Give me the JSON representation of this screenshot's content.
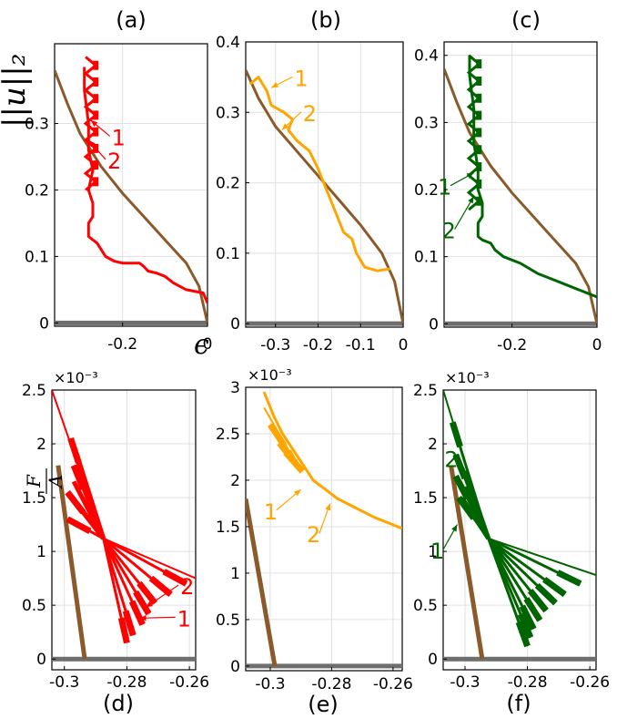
{
  "colors": {
    "a": "#ff0000",
    "b": "#ffa500",
    "c": "#006400",
    "brown": "#8b5a2b",
    "gray": "#6e6e6e",
    "grid": "#e0e0e0"
  },
  "labels": {
    "top_ylabel": "||u||₂",
    "top_xlabel": "ϵ",
    "bottom_ylabel_num": "F",
    "bottom_ylabel_den": "A",
    "exponent": "×10⁻³"
  },
  "chart_data": [
    {
      "id": "a",
      "label": "(a)",
      "type": "line",
      "xlim": [
        -0.36,
        0.0
      ],
      "ylim": [
        -0.005,
        0.42
      ],
      "xticks": [
        -0.2,
        0.0
      ],
      "xtick_labels": [
        "-0.2",
        "0"
      ],
      "yticks": [
        0,
        0.1,
        0.2,
        0.3
      ],
      "ytick_labels": [
        "0",
        "0.1",
        "0.2",
        "0.3"
      ],
      "grid": true,
      "color": "a",
      "brown": [
        [
          -0.36,
          0.38
        ],
        [
          -0.33,
          0.33
        ],
        [
          -0.3,
          0.285
        ],
        [
          -0.25,
          0.235
        ],
        [
          -0.2,
          0.195
        ],
        [
          -0.15,
          0.16
        ],
        [
          -0.1,
          0.125
        ],
        [
          -0.05,
          0.09
        ],
        [
          -0.02,
          0.055
        ],
        [
          0,
          0
        ]
      ],
      "gray": [
        [
          -0.36,
          0.0
        ],
        [
          0.0,
          0.0
        ]
      ],
      "colored": [
        [
          0,
          0.03
        ],
        [
          -0.01,
          0.045
        ],
        [
          -0.05,
          0.05
        ],
        [
          -0.08,
          0.06
        ],
        [
          -0.1,
          0.07
        ],
        [
          -0.12,
          0.075
        ],
        [
          -0.14,
          0.078
        ],
        [
          -0.15,
          0.085
        ],
        [
          -0.16,
          0.09
        ],
        [
          -0.18,
          0.09
        ],
        [
          -0.2,
          0.09
        ],
        [
          -0.22,
          0.093
        ],
        [
          -0.24,
          0.1
        ],
        [
          -0.25,
          0.11
        ],
        [
          -0.26,
          0.12
        ],
        [
          -0.27,
          0.125
        ],
        [
          -0.28,
          0.13
        ],
        [
          -0.28,
          0.15
        ],
        [
          -0.27,
          0.16
        ],
        [
          -0.27,
          0.18
        ],
        [
          -0.28,
          0.2
        ],
        [
          -0.27,
          0.23
        ],
        [
          -0.28,
          0.26
        ],
        [
          -0.28,
          0.3
        ],
        [
          -0.29,
          0.35
        ],
        [
          -0.29,
          0.385
        ]
      ],
      "zigzag": {
        "x": -0.275,
        "ymin": 0.2,
        "ymax": 0.4,
        "amp": 0.012,
        "steps": 8
      },
      "annotations": [
        {
          "text": "1",
          "tx": -0.23,
          "ty": 0.27,
          "px": -0.275,
          "py": 0.305
        },
        {
          "text": "2",
          "tx": -0.24,
          "ty": 0.235,
          "px": -0.28,
          "py": 0.275
        }
      ]
    },
    {
      "id": "b",
      "label": "(b)",
      "type": "line",
      "xlim": [
        -0.37,
        0.0
      ],
      "ylim": [
        -0.005,
        0.4
      ],
      "xticks": [
        -0.3,
        -0.2,
        -0.1,
        0.0
      ],
      "xtick_labels": [
        "-0.3",
        "-0.2",
        "-0.1",
        "0"
      ],
      "yticks": [
        0,
        0.1,
        0.2,
        0.3,
        0.4
      ],
      "ytick_labels": [
        "0",
        "0.1",
        "0.2",
        "0.3",
        "0.4"
      ],
      "grid": true,
      "color": "b",
      "brown": [
        [
          -0.37,
          0.36
        ],
        [
          -0.34,
          0.32
        ],
        [
          -0.3,
          0.28
        ],
        [
          -0.25,
          0.245
        ],
        [
          -0.2,
          0.21
        ],
        [
          -0.15,
          0.175
        ],
        [
          -0.1,
          0.14
        ],
        [
          -0.05,
          0.1
        ],
        [
          -0.02,
          0.06
        ],
        [
          0,
          0
        ]
      ],
      "gray": [
        [
          -0.37,
          0.0
        ],
        [
          0.0,
          0.0
        ]
      ],
      "colored": [
        [
          -0.03,
          0.078
        ],
        [
          -0.06,
          0.075
        ],
        [
          -0.09,
          0.08
        ],
        [
          -0.11,
          0.1
        ],
        [
          -0.12,
          0.12
        ],
        [
          -0.14,
          0.13
        ],
        [
          -0.16,
          0.16
        ],
        [
          -0.18,
          0.19
        ],
        [
          -0.2,
          0.22
        ],
        [
          -0.22,
          0.245
        ],
        [
          -0.25,
          0.26
        ],
        [
          -0.27,
          0.275
        ],
        [
          -0.26,
          0.29
        ],
        [
          -0.28,
          0.3
        ],
        [
          -0.31,
          0.31
        ],
        [
          -0.32,
          0.33
        ],
        [
          -0.34,
          0.35
        ],
        [
          -0.36,
          0.34
        ]
      ],
      "annotations": [
        {
          "text": "1",
          "tx": -0.26,
          "ty": 0.34,
          "px": -0.31,
          "py": 0.335
        },
        {
          "text": "2",
          "tx": -0.24,
          "ty": 0.29,
          "px": -0.285,
          "py": 0.275
        }
      ]
    },
    {
      "id": "c",
      "label": "(c)",
      "type": "line",
      "xlim": [
        -0.36,
        0.0
      ],
      "ylim": [
        -0.005,
        0.42
      ],
      "xticks": [
        -0.2,
        0.0
      ],
      "xtick_labels": [
        "-0.2",
        "0"
      ],
      "yticks": [
        0,
        0.1,
        0.2,
        0.3,
        0.4
      ],
      "ytick_labels": [
        "0",
        "0.1",
        "0.2",
        "0.3",
        "0.4"
      ],
      "grid": true,
      "color": "c",
      "brown": [
        [
          -0.36,
          0.38
        ],
        [
          -0.33,
          0.33
        ],
        [
          -0.3,
          0.285
        ],
        [
          -0.25,
          0.235
        ],
        [
          -0.2,
          0.195
        ],
        [
          -0.15,
          0.16
        ],
        [
          -0.1,
          0.125
        ],
        [
          -0.05,
          0.09
        ],
        [
          -0.02,
          0.055
        ],
        [
          0,
          0
        ]
      ],
      "gray": [
        [
          -0.36,
          0.0
        ],
        [
          0.0,
          0.0
        ]
      ],
      "colored": [
        [
          0,
          0.04
        ],
        [
          -0.02,
          0.045
        ],
        [
          -0.06,
          0.055
        ],
        [
          -0.1,
          0.065
        ],
        [
          -0.14,
          0.075
        ],
        [
          -0.18,
          0.09
        ],
        [
          -0.22,
          0.1
        ],
        [
          -0.24,
          0.11
        ],
        [
          -0.25,
          0.12
        ],
        [
          -0.27,
          0.125
        ],
        [
          -0.28,
          0.13
        ],
        [
          -0.28,
          0.15
        ],
        [
          -0.27,
          0.16
        ],
        [
          -0.27,
          0.18
        ],
        [
          -0.28,
          0.2
        ],
        [
          -0.28,
          0.23
        ],
        [
          -0.29,
          0.27
        ],
        [
          -0.29,
          0.32
        ],
        [
          -0.3,
          0.37
        ],
        [
          -0.3,
          0.4
        ]
      ],
      "zigzag": {
        "x": -0.29,
        "ymin": 0.17,
        "ymax": 0.4,
        "amp": 0.012,
        "steps": 9
      },
      "annotations": [
        {
          "text": "1",
          "tx": -0.345,
          "ty": 0.195,
          "px": -0.29,
          "py": 0.225
        },
        {
          "text": "2",
          "tx": -0.335,
          "ty": 0.13,
          "px": -0.29,
          "py": 0.19
        }
      ]
    },
    {
      "id": "d",
      "label": "(d)",
      "type": "line",
      "xlim": [
        -0.304,
        -0.258
      ],
      "ylim": [
        -0.0001,
        0.0025
      ],
      "xticks": [
        -0.3,
        -0.28,
        -0.26
      ],
      "xtick_labels": [
        "-0.3",
        "-0.28",
        "-0.26"
      ],
      "yticks": [
        0,
        0.0005,
        0.001,
        0.0015,
        0.002,
        0.0025
      ],
      "ytick_labels": [
        "0",
        "0.5",
        "1",
        "1.5",
        "2",
        "2.5"
      ],
      "grid": true,
      "color": "a",
      "brown": [
        [
          -0.302,
          0.0018
        ],
        [
          -0.2935,
          0.0
        ]
      ],
      "gray": [
        [
          -0.304,
          0.0
        ],
        [
          -0.258,
          0.0
        ]
      ],
      "fan": {
        "cx": -0.2875,
        "cy": 0.00112,
        "spokes": [
          [
            -0.304,
            0.0025
          ],
          [
            -0.298,
            0.00205
          ],
          [
            -0.297,
            0.0018
          ],
          [
            -0.299,
            0.00155
          ],
          [
            -0.299,
            0.0013
          ],
          [
            -0.258,
            0.00075
          ],
          [
            -0.261,
            0.0007
          ],
          [
            -0.266,
            0.0006
          ],
          [
            -0.271,
            0.00052
          ],
          [
            -0.273,
            0.00042
          ],
          [
            -0.275,
            0.00032
          ],
          [
            -0.278,
            0.00022
          ],
          [
            -0.28,
            0.00015
          ]
        ],
        "highlight": [
          [
            -0.295,
            0.0014
          ],
          [
            -0.297,
            0.00165
          ],
          [
            -0.296,
            0.0019
          ],
          [
            -0.294,
            0.0016
          ],
          [
            -0.296,
            0.00145
          ]
        ]
      },
      "annotations": [
        {
          "text": "2",
          "tx": -0.2635,
          "ty": 0.00062,
          "px": -0.274,
          "py": 0.00048
        },
        {
          "text": "1",
          "tx": -0.2645,
          "ty": 0.00032,
          "px": -0.276,
          "py": 0.00038
        }
      ]
    },
    {
      "id": "e",
      "label": "(e)",
      "type": "line",
      "xlim": [
        -0.308,
        -0.257
      ],
      "ylim": [
        -5e-05,
        0.003
      ],
      "xticks": [
        -0.3,
        -0.28,
        -0.26
      ],
      "xtick_labels": [
        "-0.3",
        "-0.28",
        "-0.26"
      ],
      "yticks": [
        0,
        0.0005,
        0.001,
        0.0015,
        0.002,
        0.0025,
        0.003
      ],
      "ytick_labels": [
        "0",
        "0.5",
        "1",
        "1.5",
        "2",
        "2.5",
        "3"
      ],
      "grid": true,
      "color": "b",
      "brown": [
        [
          -0.308,
          0.0018
        ],
        [
          -0.2985,
          0.0
        ]
      ],
      "gray": [
        [
          -0.308,
          0.0
        ],
        [
          -0.257,
          0.0
        ]
      ],
      "colored": [
        [
          -0.302,
          0.00295
        ],
        [
          -0.299,
          0.0027
        ],
        [
          -0.296,
          0.0025
        ],
        [
          -0.293,
          0.00235
        ],
        [
          -0.291,
          0.00225
        ],
        [
          -0.288,
          0.0021
        ],
        [
          -0.286,
          0.002
        ],
        [
          -0.282,
          0.0019
        ],
        [
          -0.278,
          0.0018
        ],
        [
          -0.272,
          0.0017
        ],
        [
          -0.266,
          0.0016
        ],
        [
          -0.26,
          0.00152
        ],
        [
          -0.257,
          0.00148
        ]
      ],
      "fan": {
        "cx": -0.291,
        "cy": 0.00215,
        "spokes": [
          [
            -0.302,
            0.00278
          ],
          [
            -0.3,
            0.0026
          ],
          [
            -0.297,
            0.0024
          ],
          [
            -0.295,
            0.0023
          ]
        ],
        "highlight": [
          [
            -0.294,
            0.00232
          ],
          [
            -0.292,
            0.00222
          ]
        ]
      },
      "annotations": [
        {
          "text": "1",
          "tx": -0.298,
          "ty": 0.0016,
          "px": -0.29,
          "py": 0.0019
        },
        {
          "text": "2",
          "tx": -0.284,
          "ty": 0.00135,
          "px": -0.2805,
          "py": 0.00175
        }
      ]
    },
    {
      "id": "f",
      "label": "(f)",
      "type": "line",
      "xlim": [
        -0.307,
        -0.258
      ],
      "ylim": [
        -0.0001,
        0.0025
      ],
      "xticks": [
        -0.3,
        -0.28,
        -0.26
      ],
      "xtick_labels": [
        "-0.3",
        "-0.28",
        "-0.26"
      ],
      "yticks": [
        0,
        0.0005,
        0.001,
        0.0015,
        0.002,
        0.0025
      ],
      "ytick_labels": [
        "0",
        "0.5",
        "1",
        "1.5",
        "2",
        "2.5"
      ],
      "grid": true,
      "color": "c",
      "brown": [
        [
          -0.3045,
          0.0018
        ],
        [
          -0.2945,
          0.0
        ]
      ],
      "gray": [
        [
          -0.307,
          0.0
        ],
        [
          -0.258,
          0.0
        ]
      ],
      "fan": {
        "cx": -0.2925,
        "cy": 0.00112,
        "spokes": [
          [
            -0.307,
            0.0025
          ],
          [
            -0.304,
            0.0022
          ],
          [
            -0.303,
            0.0019
          ],
          [
            -0.303,
            0.0017
          ],
          [
            -0.302,
            0.0015
          ],
          [
            -0.258,
            0.00078
          ],
          [
            -0.263,
            0.0007
          ],
          [
            -0.268,
            0.0006
          ],
          [
            -0.271,
            0.00052
          ],
          [
            -0.274,
            0.00045
          ],
          [
            -0.276,
            0.00036
          ],
          [
            -0.278,
            0.00028
          ],
          [
            -0.279,
            0.0002
          ],
          [
            -0.28,
            0.00012
          ]
        ],
        "highlight": [
          [
            -0.3,
            0.0016
          ],
          [
            -0.301,
            0.0015
          ],
          [
            -0.3,
            0.00175
          ]
        ]
      },
      "annotations": [
        {
          "text": "2",
          "tx": -0.3025,
          "ty": 0.0018,
          "px": -0.3,
          "py": 0.0017
        },
        {
          "text": "1",
          "tx": -0.307,
          "ty": 0.00095,
          "px": -0.3025,
          "py": 0.00125
        }
      ]
    }
  ]
}
